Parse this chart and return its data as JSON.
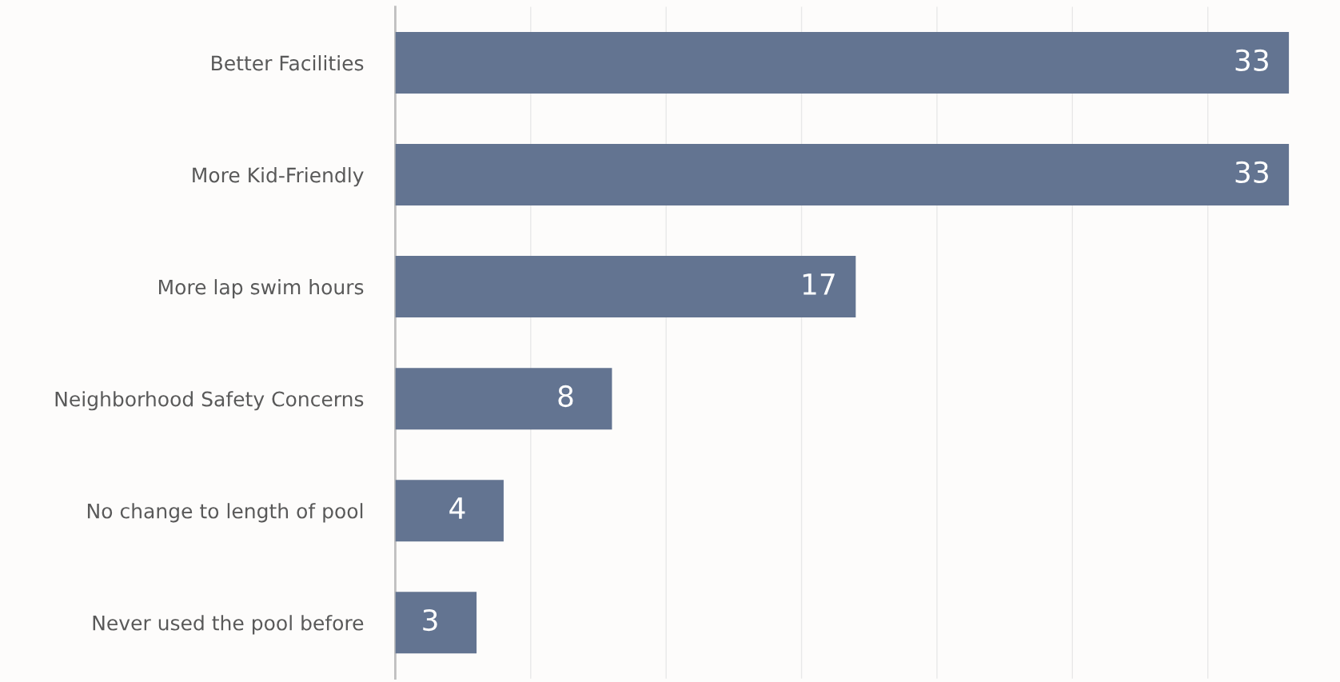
{
  "chart_data": {
    "type": "bar",
    "orientation": "horizontal",
    "categories": [
      "Better Facilities",
      "More Kid-Friendly",
      "More lap swim hours",
      "Neighborhood Safety Concerns",
      "No change to length of pool",
      "Never used the pool before"
    ],
    "values": [
      33,
      33,
      17,
      8,
      4,
      3
    ],
    "color": "#637491",
    "xlim": [
      0,
      33
    ],
    "xticks": [
      {
        "value": 0,
        "label": null
      },
      {
        "value": 5,
        "label": null
      },
      {
        "value": 10,
        "label": null
      },
      {
        "value": 15,
        "label": null
      },
      {
        "value": 20,
        "label": null
      },
      {
        "value": 25,
        "label": null
      },
      {
        "value": 30,
        "label": null
      }
    ],
    "grid": "x",
    "data_labels": true,
    "tick_labels": "y"
  }
}
